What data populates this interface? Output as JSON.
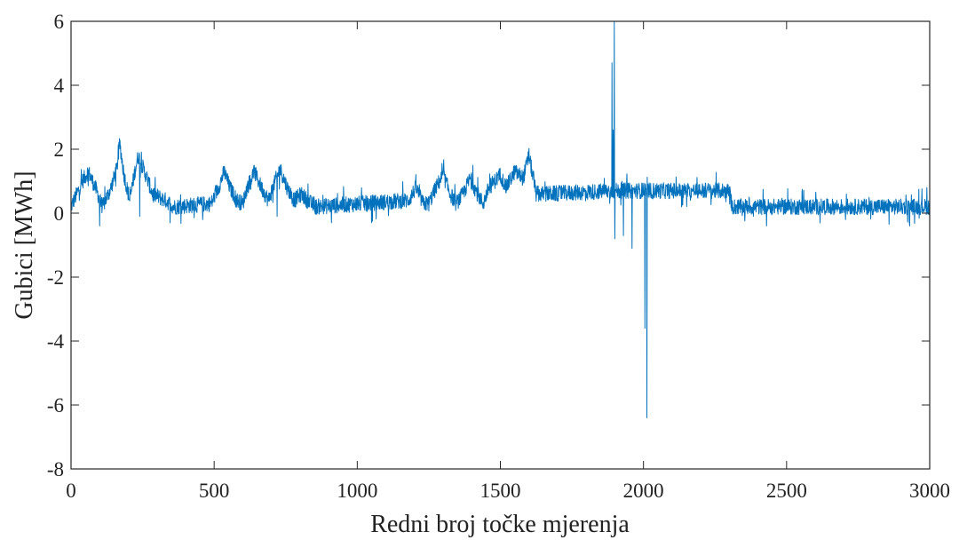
{
  "chart_data": {
    "type": "line",
    "title": "",
    "xlabel": "Redni broj točke mjerenja",
    "ylabel": "Gubici [MWh]",
    "xlim": [
      0,
      3000
    ],
    "ylim": [
      -8,
      6
    ],
    "xticks": [
      0,
      500,
      1000,
      1500,
      2000,
      2500,
      3000
    ],
    "yticks": [
      -8,
      -6,
      -4,
      -2,
      0,
      2,
      4,
      6
    ],
    "xtick_labels": [
      "0",
      "500",
      "1000",
      "1500",
      "2000",
      "2500",
      "3000"
    ],
    "ytick_labels": [
      "-8",
      "-6",
      "-4",
      "-2",
      "0",
      "2",
      "4",
      "6"
    ],
    "grid": false,
    "legend": "none",
    "colors": {
      "series": "#0072BD",
      "axis": "#262626"
    },
    "series": [
      {
        "levels": [
          [
            0,
            0.2
          ],
          [
            20,
            0.6
          ],
          [
            40,
            1.0
          ],
          [
            60,
            1.3
          ],
          [
            85,
            0.8
          ],
          [
            110,
            0.2
          ],
          [
            140,
            0.8
          ],
          [
            160,
            1.4
          ],
          [
            170,
            2.2
          ],
          [
            185,
            1.2
          ],
          [
            205,
            0.4
          ],
          [
            225,
            1.4
          ],
          [
            235,
            1.8
          ],
          [
            265,
            1.1
          ],
          [
            285,
            0.6
          ],
          [
            330,
            0.4
          ],
          [
            360,
            0.2
          ],
          [
            490,
            0.3
          ],
          [
            515,
            0.8
          ],
          [
            535,
            1.3
          ],
          [
            555,
            0.8
          ],
          [
            580,
            0.4
          ],
          [
            600,
            0.3
          ],
          [
            615,
            0.8
          ],
          [
            640,
            1.3
          ],
          [
            665,
            0.8
          ],
          [
            690,
            0.4
          ],
          [
            705,
            0.8
          ],
          [
            730,
            1.4
          ],
          [
            755,
            0.8
          ],
          [
            780,
            0.4
          ],
          [
            805,
            0.6
          ],
          [
            825,
            0.4
          ],
          [
            855,
            0.2
          ],
          [
            1180,
            0.4
          ],
          [
            1205,
            0.8
          ],
          [
            1230,
            0.3
          ],
          [
            1250,
            0.3
          ],
          [
            1275,
            0.8
          ],
          [
            1300,
            1.2
          ],
          [
            1325,
            0.6
          ],
          [
            1345,
            0.3
          ],
          [
            1370,
            0.6
          ],
          [
            1395,
            1.1
          ],
          [
            1420,
            0.6
          ],
          [
            1440,
            0.3
          ],
          [
            1460,
            0.8
          ],
          [
            1500,
            1.2
          ],
          [
            1520,
            0.8
          ],
          [
            1550,
            1.3
          ],
          [
            1580,
            1.1
          ],
          [
            1600,
            1.8
          ],
          [
            1625,
            0.6
          ],
          [
            1660,
            0.6
          ],
          [
            1900,
            0.7
          ],
          [
            1910,
            0.7
          ],
          [
            2080,
            0.7
          ],
          [
            2300,
            0.7
          ],
          [
            2310,
            0.2
          ],
          [
            3000,
            0.2
          ]
        ],
        "spikes": [
          [
            100,
            -0.4
          ],
          [
            240,
            -0.1
          ],
          [
            460,
            -0.2
          ],
          [
            720,
            -0.1
          ],
          [
            910,
            -0.3
          ],
          [
            1050,
            -0.3
          ],
          [
            1180,
            0.4
          ],
          [
            1890,
            4.7
          ],
          [
            1894,
            2.6
          ],
          [
            1898,
            6.0
          ],
          [
            1900,
            -0.8
          ],
          [
            1930,
            -0.7
          ],
          [
            1960,
            -1.1
          ],
          [
            2005,
            -3.6
          ],
          [
            2012,
            -6.4
          ],
          [
            2430,
            -0.4
          ],
          [
            2930,
            -0.4
          ],
          [
            2990,
            0.8
          ]
        ]
      }
    ]
  }
}
